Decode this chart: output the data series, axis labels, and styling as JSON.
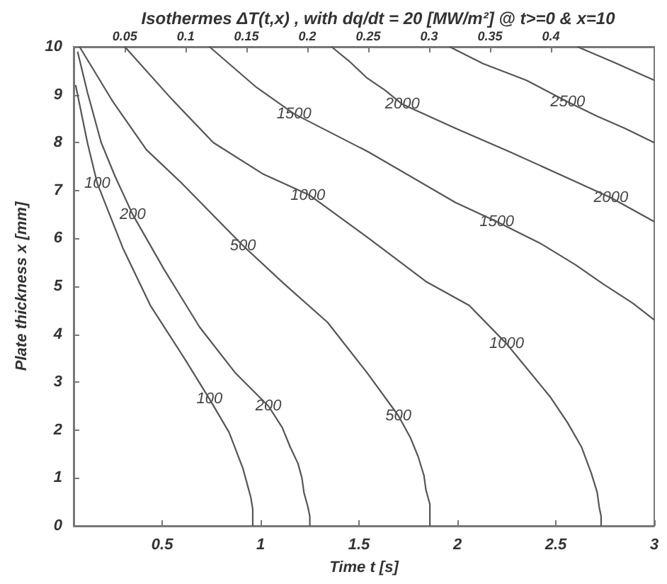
{
  "chart_data": {
    "type": "line",
    "title": "Isothermes ΔT(t,x) , with dq/dt = 20 [MW/m²] @ t>=0 & x=10",
    "xlabel": "Time t [s]",
    "ylabel": "Plate thickness x [mm]",
    "xlim": [
      0.05,
      3
    ],
    "xticks": [
      0.5,
      1,
      1.5,
      2,
      2.5,
      3
    ],
    "ylim": [
      0,
      10
    ],
    "yticks": [
      0,
      1,
      2,
      3,
      4,
      5,
      6,
      7,
      8,
      9,
      10
    ],
    "x2lim": [
      0.008,
      0.485
    ],
    "x2ticks": [
      0.05,
      0.1,
      0.15,
      0.2,
      0.25,
      0.3,
      0.35,
      0.4
    ],
    "series": [
      {
        "color": "#555555",
        "x": [
          0.06,
          0.12,
          0.17,
          0.3,
          0.44,
          0.62,
          0.74,
          0.84,
          0.91,
          0.93,
          0.95,
          0.96,
          0.96
        ],
        "values": [
          9.2,
          8.0,
          7.15,
          5.8,
          4.6,
          3.45,
          2.65,
          1.95,
          1.2,
          0.9,
          0.6,
          0.35,
          0
        ]
      },
      {
        "color": "#555555",
        "x": [
          0.07,
          0.12,
          0.19,
          0.26,
          0.35,
          0.51,
          0.69,
          0.87,
          1.04,
          1.11,
          1.15,
          1.19,
          1.21,
          1.22,
          1.24,
          1.25,
          1.25
        ],
        "values": [
          9.9,
          9.05,
          8.0,
          7.3,
          6.5,
          5.35,
          4.15,
          3.2,
          2.5,
          2.05,
          1.65,
          1.3,
          1.0,
          0.7,
          0.4,
          0.2,
          0
        ]
      },
      {
        "color": "#555555",
        "x": [
          0.08,
          0.25,
          0.42,
          0.6,
          0.91,
          1.12,
          1.34,
          1.54,
          1.7,
          1.76,
          1.8,
          1.83,
          1.84,
          1.86,
          1.86,
          1.86,
          1.86
        ],
        "values": [
          10,
          8.85,
          7.85,
          7.15,
          5.85,
          5.05,
          4.25,
          3.2,
          2.3,
          1.85,
          1.45,
          1.05,
          0.75,
          0.45,
          0.25,
          0.1,
          0
        ]
      },
      {
        "color": "#555555",
        "x": [
          0.31,
          0.55,
          0.76,
          1.01,
          1.25,
          1.55,
          1.84,
          2.06,
          2.25,
          2.47,
          2.56,
          2.63,
          2.68,
          2.71,
          2.72,
          2.73,
          2.73
        ],
        "values": [
          10,
          8.9,
          8.0,
          7.35,
          6.9,
          6.0,
          5.1,
          4.6,
          3.8,
          2.7,
          2.15,
          1.65,
          1.1,
          0.7,
          0.4,
          0.2,
          0
        ]
      },
      {
        "color": "#555555",
        "x": [
          0.74,
          0.98,
          1.17,
          1.55,
          1.99,
          2.2,
          2.42,
          2.6,
          2.74,
          2.89,
          3.0
        ],
        "values": [
          10,
          9.15,
          8.6,
          7.8,
          6.75,
          6.35,
          5.9,
          5.45,
          5.05,
          4.65,
          4.3
        ]
      },
      {
        "color": "#555555",
        "x": [
          1.36,
          1.45,
          1.54,
          1.63,
          1.72,
          1.99,
          2.27,
          2.78,
          3.0
        ],
        "values": [
          10,
          9.7,
          9.35,
          9.1,
          8.8,
          8.3,
          7.8,
          6.85,
          6.35
        ]
      },
      {
        "color": "#555555",
        "x": [
          1.96,
          2.13,
          2.35,
          2.56,
          2.71,
          2.85,
          3.0
        ],
        "values": [
          10,
          9.65,
          9.3,
          8.85,
          8.55,
          8.3,
          8.0
        ]
      },
      {
        "color": "#555555",
        "x": [
          2.61,
          2.81,
          3.0
        ],
        "values": [
          10,
          9.65,
          9.3
        ]
      }
    ],
    "annotations": [
      {
        "text": "100",
        "x": 0.17,
        "y": 7.15
      },
      {
        "text": "200",
        "x": 0.35,
        "y": 6.5
      },
      {
        "text": "500",
        "x": 0.91,
        "y": 5.85
      },
      {
        "text": "1000",
        "x": 1.24,
        "y": 6.9
      },
      {
        "text": "1500",
        "x": 1.17,
        "y": 8.6
      },
      {
        "text": "2000",
        "x": 2.78,
        "y": 6.85
      },
      {
        "text": "100",
        "x": 0.74,
        "y": 2.65
      },
      {
        "text": "200",
        "x": 1.04,
        "y": 2.5
      },
      {
        "text": "500",
        "x": 1.7,
        "y": 2.3
      },
      {
        "text": "1000",
        "x": 2.25,
        "y": 3.8
      },
      {
        "text": "1500",
        "x": 2.2,
        "y": 6.35
      },
      {
        "text": "2000",
        "x": 1.72,
        "y": 8.8
      },
      {
        "text": "2500",
        "x": 2.56,
        "y": 8.85
      }
    ]
  }
}
